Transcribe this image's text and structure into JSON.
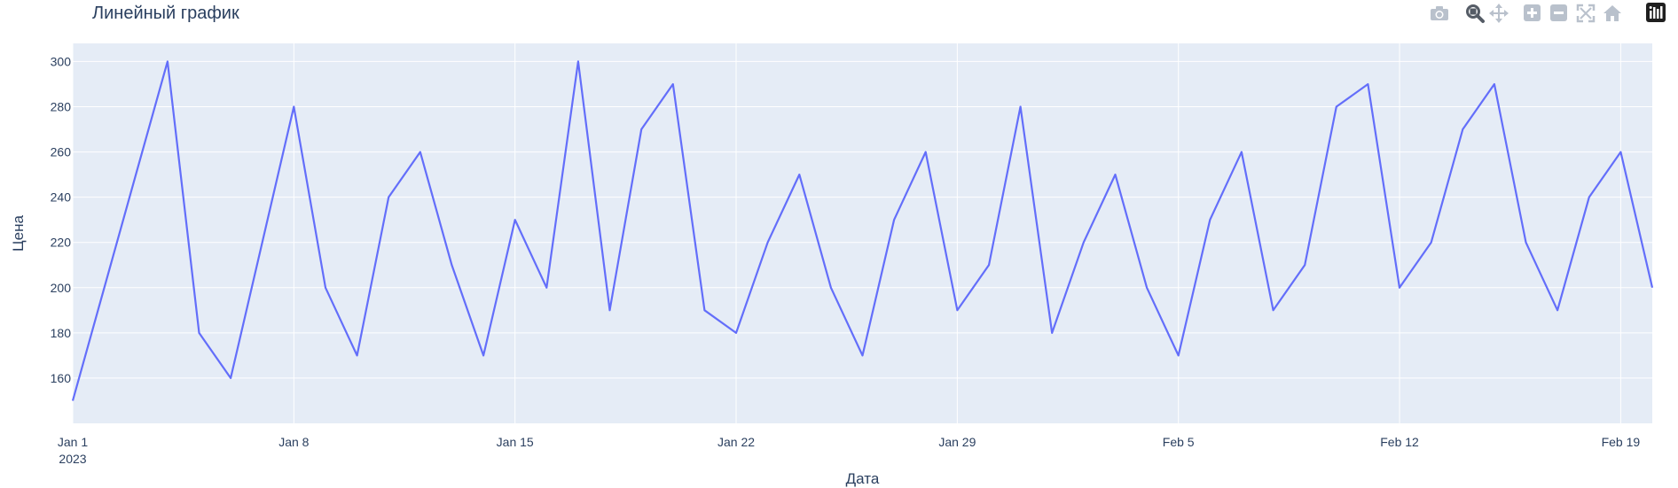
{
  "chart_data": {
    "type": "line",
    "title": "Линейный график",
    "xlabel": "Дата",
    "ylabel": "Цена",
    "x_start": "2023-01-01",
    "x": [
      "2023-01-01",
      "2023-01-02",
      "2023-01-03",
      "2023-01-04",
      "2023-01-05",
      "2023-01-06",
      "2023-01-07",
      "2023-01-08",
      "2023-01-09",
      "2023-01-10",
      "2023-01-11",
      "2023-01-12",
      "2023-01-13",
      "2023-01-14",
      "2023-01-15",
      "2023-01-16",
      "2023-01-17",
      "2023-01-18",
      "2023-01-19",
      "2023-01-20",
      "2023-01-21",
      "2023-01-22",
      "2023-01-23",
      "2023-01-24",
      "2023-01-25",
      "2023-01-26",
      "2023-01-27",
      "2023-01-28",
      "2023-01-29",
      "2023-01-30",
      "2023-01-31",
      "2023-02-01",
      "2023-02-02",
      "2023-02-03",
      "2023-02-04",
      "2023-02-05",
      "2023-02-06",
      "2023-02-07",
      "2023-02-08",
      "2023-02-09",
      "2023-02-10",
      "2023-02-11",
      "2023-02-12",
      "2023-02-13",
      "2023-02-14",
      "2023-02-15",
      "2023-02-16",
      "2023-02-17",
      "2023-02-18",
      "2023-02-19",
      "2023-02-20"
    ],
    "y": [
      150,
      200,
      250,
      300,
      180,
      160,
      220,
      280,
      200,
      170,
      240,
      260,
      210,
      170,
      230,
      200,
      300,
      190,
      270,
      290,
      190,
      180,
      220,
      250,
      200,
      170,
      230,
      260,
      190,
      210,
      280,
      180,
      220,
      250,
      200,
      170,
      230,
      260,
      190,
      210,
      280,
      290,
      200,
      220,
      270,
      290,
      220,
      190,
      240,
      260,
      200
    ],
    "ylim": [
      140,
      308
    ],
    "xlim_days": [
      0,
      50
    ],
    "yticks": [
      "160",
      "180",
      "200",
      "220",
      "240",
      "260",
      "280",
      "300"
    ],
    "xticks": [
      {
        "day": 0,
        "label": "Jan 1",
        "sublabel": "2023"
      },
      {
        "day": 7,
        "label": "Jan 8",
        "sublabel": ""
      },
      {
        "day": 14,
        "label": "Jan 15",
        "sublabel": ""
      },
      {
        "day": 21,
        "label": "Jan 22",
        "sublabel": ""
      },
      {
        "day": 28,
        "label": "Jan 29",
        "sublabel": ""
      },
      {
        "day": 35,
        "label": "Feb 5",
        "sublabel": ""
      },
      {
        "day": 42,
        "label": "Feb 12",
        "sublabel": ""
      },
      {
        "day": 49,
        "label": "Feb 19",
        "sublabel": ""
      }
    ],
    "grid": true,
    "line_color": "#636efa",
    "plot_bg": "#e5ecf6",
    "grid_color": "#ffffff"
  },
  "modebar": {
    "buttons": [
      {
        "icon": "camera-icon",
        "active": false
      },
      {
        "icon": "zoom-icon",
        "active": true
      },
      {
        "icon": "pan-icon",
        "active": false
      },
      {
        "icon": "zoom-in-icon",
        "active": false
      },
      {
        "icon": "zoom-out-icon",
        "active": false
      },
      {
        "icon": "autoscale-icon",
        "active": false
      },
      {
        "icon": "reset-axes-icon",
        "active": false
      },
      {
        "icon": "plotly-logo-icon",
        "active": false
      }
    ]
  }
}
